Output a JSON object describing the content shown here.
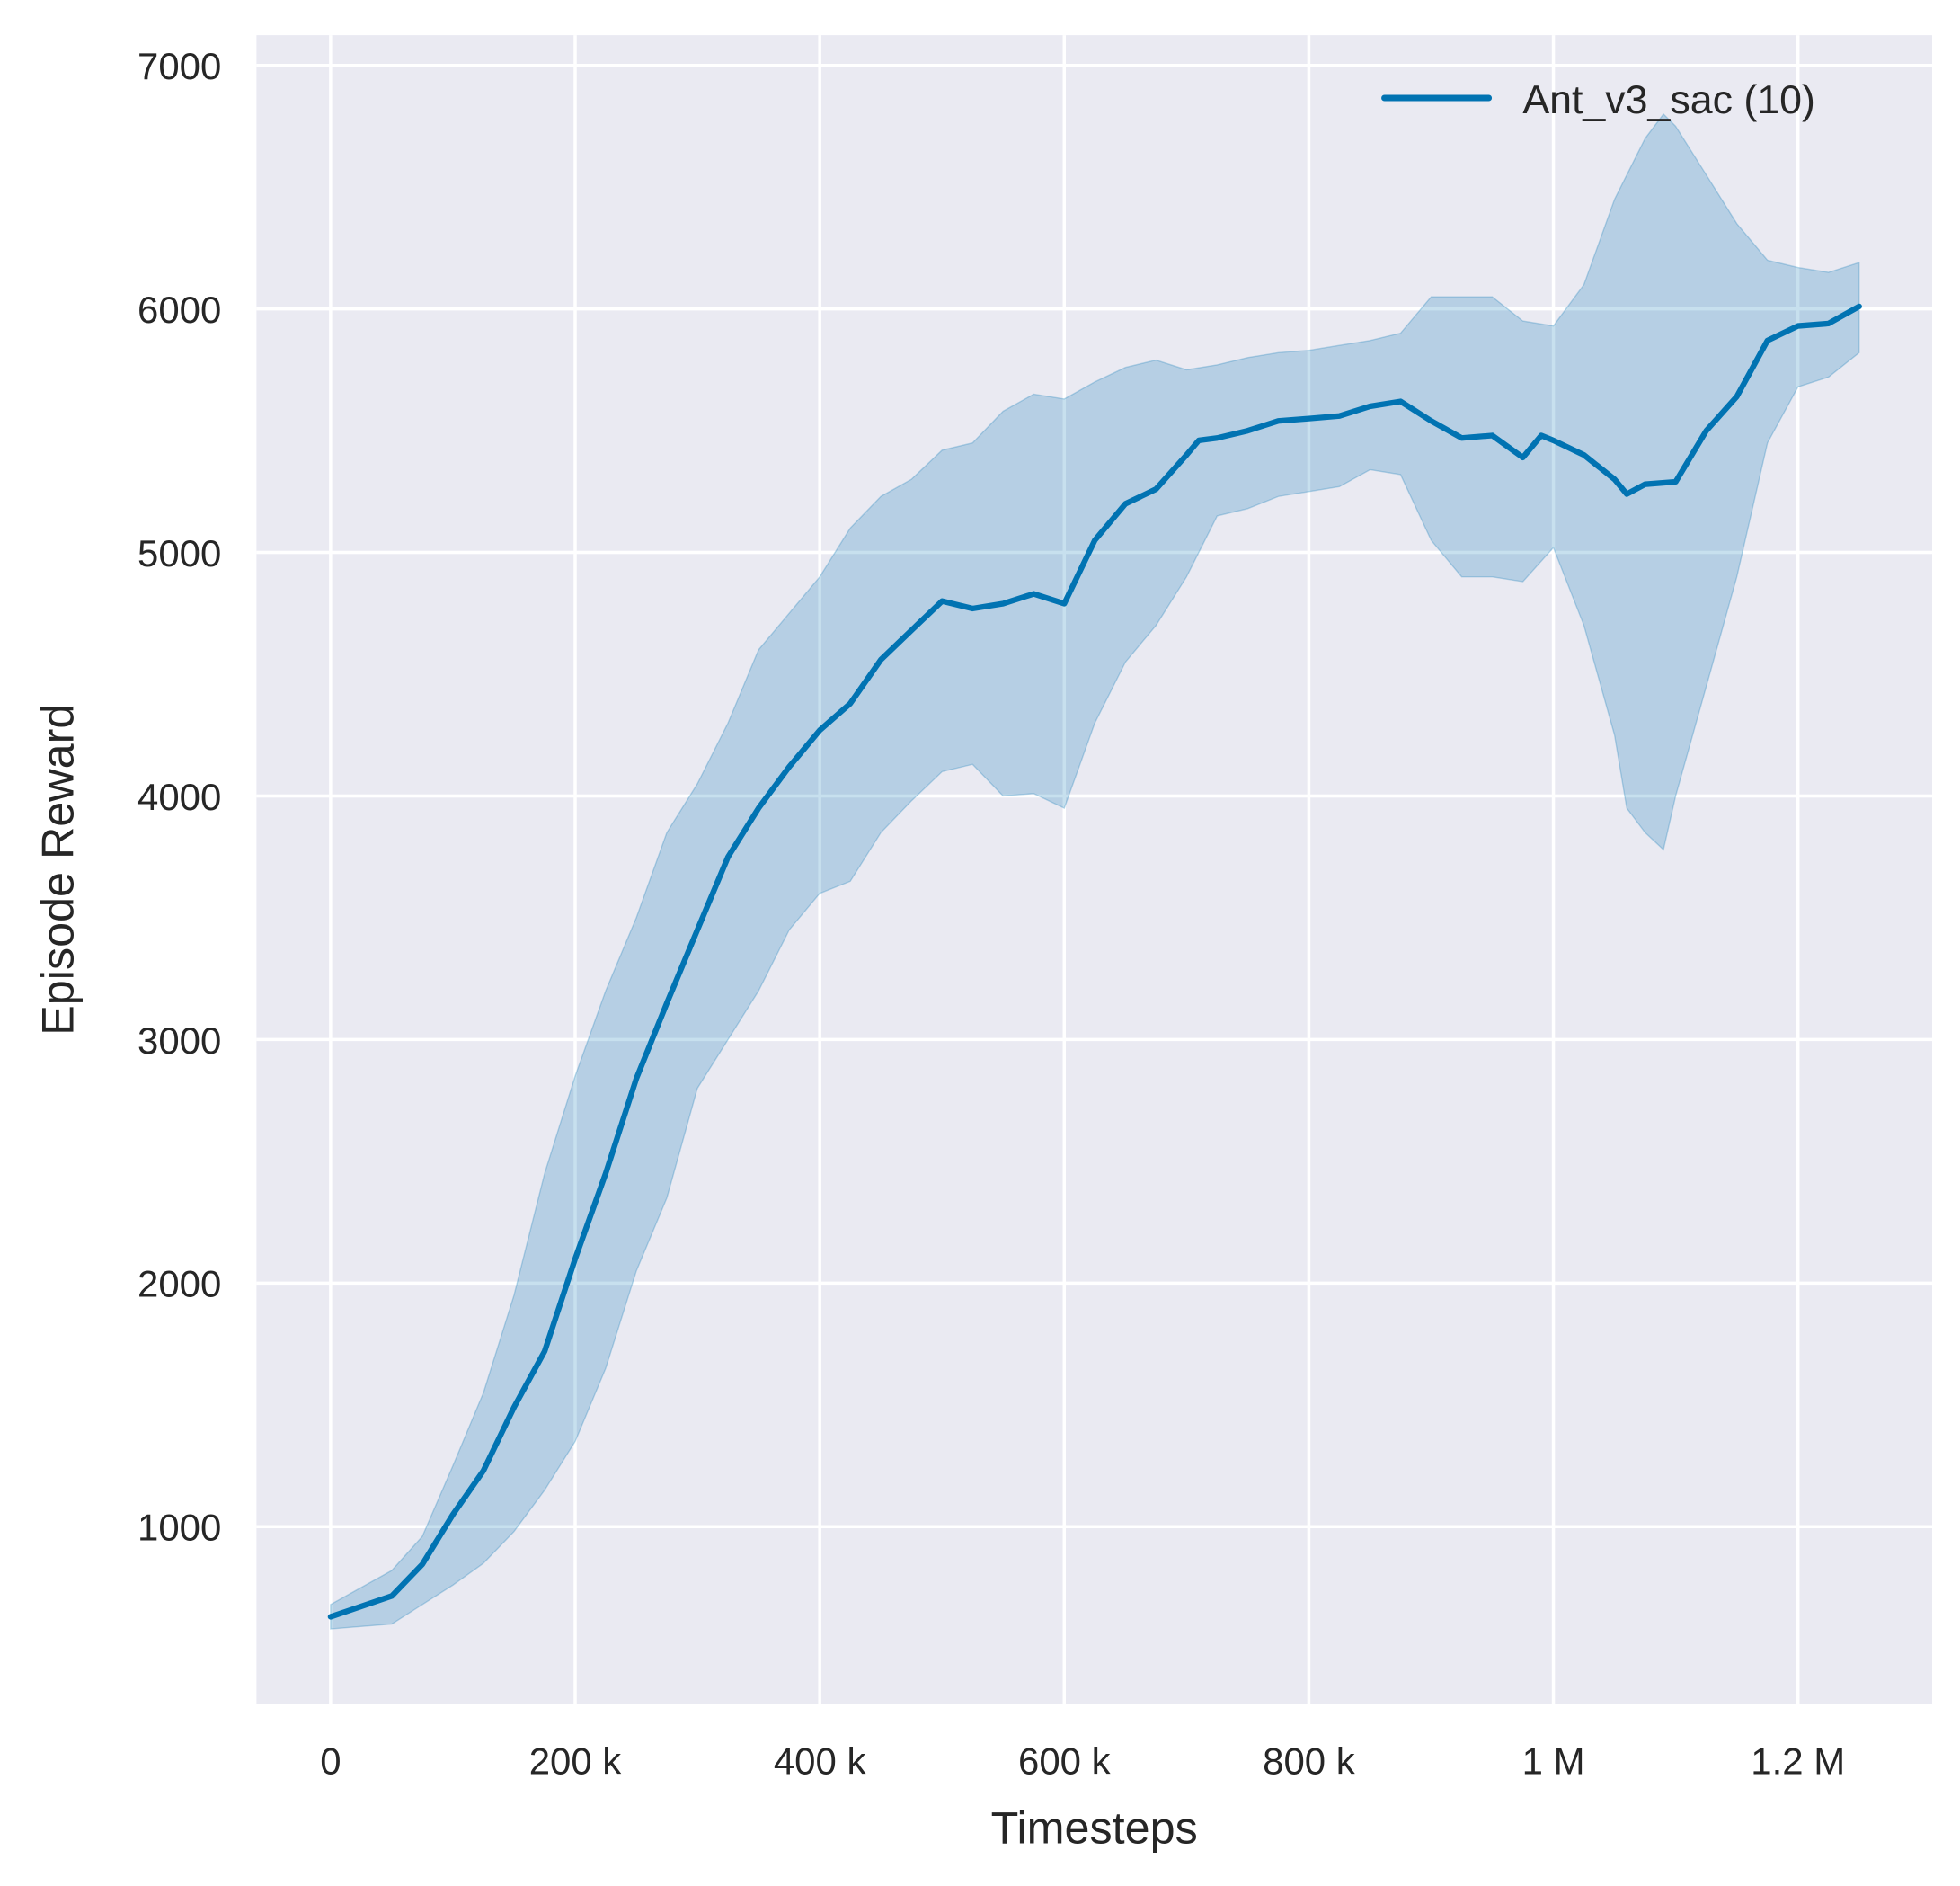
{
  "chart_data": {
    "type": "line",
    "title": "",
    "xlabel": "Timesteps",
    "ylabel": "Episode Reward",
    "xlim": [
      -60000,
      1310000
    ],
    "ylim": [
      300,
      7150
    ],
    "grid": true,
    "legend_position": "top-right",
    "x_ticks": [
      0,
      200000,
      400000,
      600000,
      800000,
      1000000,
      1200000
    ],
    "x_tick_labels": [
      "0",
      "200 k",
      "400 k",
      "600 k",
      "800 k",
      "1 M",
      "1.2 M"
    ],
    "y_ticks": [
      1000,
      2000,
      3000,
      4000,
      5000,
      6000,
      7000
    ],
    "y_tick_labels": [
      "1000",
      "2000",
      "3000",
      "4000",
      "5000",
      "6000",
      "7000"
    ],
    "colors": {
      "background": "#EAEAF2",
      "grid": "#FFFFFF",
      "series": "#0173B2"
    },
    "series": [
      {
        "name": "Ant_v3_sac (10)",
        "x": [
          0,
          50000,
          75000,
          100000,
          125000,
          150000,
          175000,
          200000,
          225000,
          250000,
          275000,
          300000,
          325000,
          350000,
          375000,
          400000,
          425000,
          450000,
          475000,
          500000,
          525000,
          550000,
          575000,
          600000,
          625000,
          650000,
          675000,
          700000,
          710000,
          725000,
          750000,
          775000,
          800000,
          825000,
          850000,
          875000,
          900000,
          925000,
          950000,
          975000,
          990000,
          1000000,
          1025000,
          1050000,
          1060000,
          1075000,
          1100000,
          1125000,
          1150000,
          1175000,
          1200000,
          1225000,
          1250000
        ],
        "y": [
          630,
          715,
          845,
          1050,
          1230,
          1490,
          1720,
          2100,
          2450,
          2840,
          3150,
          3450,
          3750,
          3950,
          4120,
          4270,
          4380,
          4560,
          4680,
          4800,
          4770,
          4790,
          4830,
          4790,
          5050,
          5200,
          5260,
          5400,
          5460,
          5470,
          5500,
          5540,
          5550,
          5560,
          5600,
          5620,
          5540,
          5470,
          5480,
          5390,
          5480,
          5460,
          5400,
          5300,
          5240,
          5280,
          5290,
          5500,
          5640,
          5870,
          5930,
          5940,
          6010
        ],
        "band_upper": {
          "x": [
            0,
            50000,
            75000,
            100000,
            125000,
            150000,
            175000,
            200000,
            225000,
            250000,
            275000,
            300000,
            325000,
            350000,
            375000,
            400000,
            425000,
            450000,
            475000,
            500000,
            525000,
            550000,
            575000,
            600000,
            625000,
            650000,
            675000,
            700000,
            725000,
            750000,
            775000,
            800000,
            825000,
            850000,
            875000,
            900000,
            925000,
            950000,
            975000,
            1000000,
            1025000,
            1050000,
            1075000,
            1090000,
            1100000,
            1125000,
            1150000,
            1175000,
            1200000,
            1225000,
            1250000
          ],
          "y": [
            680,
            820,
            960,
            1250,
            1550,
            1950,
            2450,
            2850,
            3200,
            3500,
            3850,
            4050,
            4300,
            4600,
            4750,
            4900,
            5100,
            5230,
            5300,
            5420,
            5450,
            5580,
            5650,
            5630,
            5700,
            5760,
            5790,
            5750,
            5770,
            5800,
            5820,
            5830,
            5850,
            5870,
            5900,
            6050,
            6050,
            6050,
            5950,
            5930,
            6100,
            6450,
            6700,
            6800,
            6750,
            6550,
            6350,
            6200,
            6170,
            6150,
            6190
          ]
        },
        "band_lower": {
          "x": [
            0,
            50000,
            75000,
            100000,
            125000,
            150000,
            175000,
            200000,
            225000,
            250000,
            275000,
            300000,
            325000,
            350000,
            375000,
            400000,
            425000,
            450000,
            475000,
            500000,
            525000,
            550000,
            575000,
            600000,
            625000,
            650000,
            675000,
            700000,
            725000,
            750000,
            775000,
            800000,
            825000,
            850000,
            875000,
            900000,
            925000,
            950000,
            975000,
            1000000,
            1025000,
            1050000,
            1060000,
            1075000,
            1090000,
            1100000,
            1125000,
            1150000,
            1175000,
            1200000,
            1225000,
            1250000
          ],
          "y": [
            580,
            600,
            680,
            760,
            850,
            980,
            1150,
            1350,
            1650,
            2050,
            2350,
            2800,
            3000,
            3200,
            3450,
            3600,
            3650,
            3850,
            3980,
            4100,
            4130,
            4000,
            4010,
            3950,
            4300,
            4550,
            4700,
            4900,
            5150,
            5180,
            5230,
            5250,
            5270,
            5340,
            5320,
            5050,
            4900,
            4900,
            4880,
            5020,
            4700,
            4250,
            3950,
            3850,
            3780,
            4000,
            4450,
            4900,
            5450,
            5680,
            5720,
            5820
          ]
        }
      }
    ]
  }
}
